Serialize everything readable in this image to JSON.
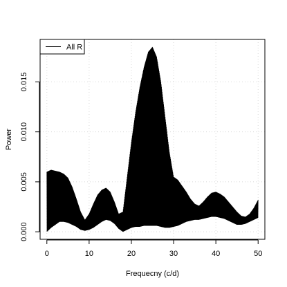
{
  "chart_data": {
    "type": "line",
    "title": "",
    "xlabel": "Frequecny (c/d)",
    "ylabel": "Power",
    "xlim": [
      0,
      50
    ],
    "ylim": [
      0,
      0.0185
    ],
    "x_ticks": [
      0,
      10,
      20,
      30,
      40,
      50
    ],
    "x_tick_labels": [
      "0",
      "10",
      "20",
      "30",
      "40",
      "50"
    ],
    "y_ticks": [
      0.0,
      0.005,
      0.01,
      0.015
    ],
    "y_tick_labels": [
      "0.000",
      "0.005",
      "0.010",
      "0.015"
    ],
    "grid": true,
    "legend": {
      "position": "top-left",
      "entries": [
        "All R"
      ]
    },
    "series": [
      {
        "name": "All R",
        "color": "#000000",
        "envelope": {
          "x": [
            0,
            1,
            2,
            3,
            4,
            5,
            6,
            7,
            8,
            9,
            10,
            11,
            12,
            13,
            14,
            15,
            16,
            17,
            18,
            19,
            20,
            21,
            22,
            23,
            24,
            25,
            26,
            27,
            28,
            29,
            30,
            31,
            32,
            33,
            34,
            35,
            36,
            37,
            38,
            39,
            40,
            41,
            42,
            43,
            44,
            45,
            46,
            47,
            48,
            49,
            50
          ],
          "upper": [
            0.006,
            0.0062,
            0.0061,
            0.006,
            0.0058,
            0.0054,
            0.0045,
            0.0033,
            0.002,
            0.0012,
            0.0018,
            0.0028,
            0.0037,
            0.0042,
            0.0044,
            0.004,
            0.003,
            0.0018,
            0.002,
            0.0055,
            0.009,
            0.012,
            0.0145,
            0.0165,
            0.018,
            0.0185,
            0.0175,
            0.015,
            0.0115,
            0.008,
            0.0055,
            0.0052,
            0.0046,
            0.004,
            0.0033,
            0.0028,
            0.0026,
            0.003,
            0.0035,
            0.0039,
            0.004,
            0.0038,
            0.0035,
            0.003,
            0.0025,
            0.002,
            0.0016,
            0.0015,
            0.0018,
            0.0024,
            0.0032
          ],
          "lower": [
            0.0,
            0.0004,
            0.0007,
            0.001,
            0.001,
            0.0009,
            0.0007,
            0.0005,
            0.0002,
            0.0001,
            0.0002,
            0.0004,
            0.0007,
            0.001,
            0.0012,
            0.0011,
            0.0008,
            0.0003,
            0.0,
            0.0002,
            0.0004,
            0.0005,
            0.0005,
            0.0006,
            0.0006,
            0.0006,
            0.0006,
            0.0005,
            0.0004,
            0.0004,
            0.0005,
            0.0006,
            0.0008,
            0.001,
            0.0011,
            0.0012,
            0.0012,
            0.0013,
            0.0014,
            0.0015,
            0.0015,
            0.0014,
            0.0013,
            0.0011,
            0.0009,
            0.0007,
            0.0007,
            0.0008,
            0.001,
            0.0012,
            0.0014
          ]
        }
      }
    ]
  }
}
